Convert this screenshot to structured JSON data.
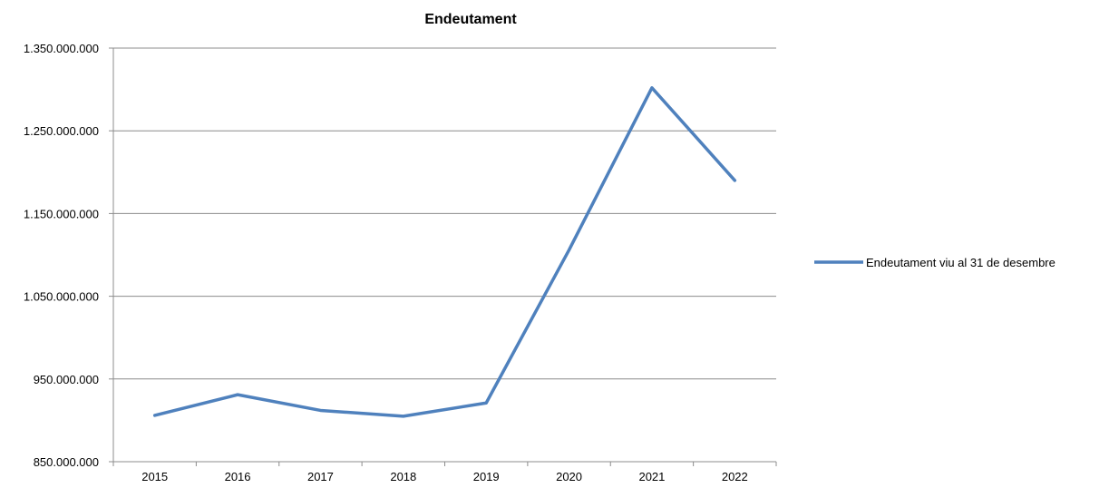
{
  "chart_data": {
    "type": "line",
    "title": "Endeutament",
    "xlabel": "",
    "ylabel": "",
    "categories": [
      "2015",
      "2016",
      "2017",
      "2018",
      "2019",
      "2020",
      "2021",
      "2022"
    ],
    "series": [
      {
        "name": "Endeutament viu al 31 de desembre",
        "color": "#4f81bd",
        "values": [
          906000000,
          931000000,
          912000000,
          905000000,
          921000000,
          1106000000,
          1302000000,
          1190000000
        ]
      }
    ],
    "ylim": [
      850000000,
      1350000000
    ],
    "yticks": [
      850000000,
      950000000,
      1050000000,
      1150000000,
      1250000000,
      1350000000
    ],
    "ytick_labels": [
      "850.000.000",
      "950.000.000",
      "1.050.000.000",
      "1.150.000.000",
      "1.250.000.000",
      "1.350.000.000"
    ],
    "grid": true,
    "legend_position": "right"
  }
}
